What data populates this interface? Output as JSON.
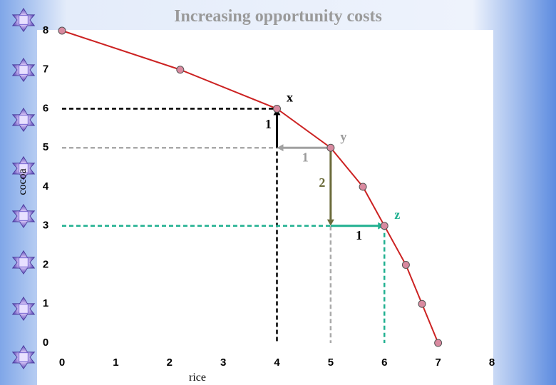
{
  "chart_data": {
    "type": "line",
    "title": "Increasing opportunity costs",
    "x_label": "rice",
    "y_label": "cocoa",
    "x": [
      0,
      2.2,
      4,
      5,
      5.6,
      6,
      6.4,
      6.7,
      7
    ],
    "values": [
      8,
      7,
      6,
      5,
      4,
      3,
      2,
      1,
      0
    ],
    "color": "#cc2222",
    "marker_color": "#d98aa0",
    "xlim": [
      0,
      8
    ],
    "ylim": [
      0,
      8
    ],
    "xticks": [
      0,
      1,
      2,
      3,
      4,
      5,
      6,
      7,
      8
    ],
    "yticks": [
      0,
      1,
      2,
      3,
      4,
      5,
      6,
      7,
      8
    ],
    "grid": false,
    "point_labels": [
      null,
      null,
      "x",
      "y",
      null,
      "z",
      null,
      null,
      null
    ],
    "point_label_colors": [
      null,
      null,
      "#000000",
      "#9a9a9a",
      null,
      "#20b090",
      null,
      null,
      null
    ],
    "guides": [
      {
        "x": 4,
        "y": 6,
        "color": "#000000"
      },
      {
        "x": 5,
        "y": 5,
        "color": "#aaaaaa"
      },
      {
        "x": 6,
        "y": 3,
        "color": "#20b090"
      }
    ],
    "arrows": [
      {
        "from_x": 4,
        "from_y": 5,
        "to_x": 4,
        "to_y": 6,
        "label": "1",
        "color": "#000000",
        "label_color": "#000000"
      },
      {
        "from_x": 5,
        "from_y": 5,
        "to_x": 4,
        "to_y": 5,
        "label": "1",
        "color": "#a0a0a0",
        "label_color": "#9a9a9a"
      },
      {
        "from_x": 5,
        "from_y": 5,
        "to_x": 5,
        "to_y": 3,
        "label": "2",
        "color": "#6b6b3a",
        "label_color": "#6b6b3a"
      },
      {
        "from_x": 5,
        "from_y": 3,
        "to_x": 6,
        "to_y": 3,
        "label": "1",
        "color": "#20b090",
        "label_color": "#000000"
      }
    ]
  }
}
